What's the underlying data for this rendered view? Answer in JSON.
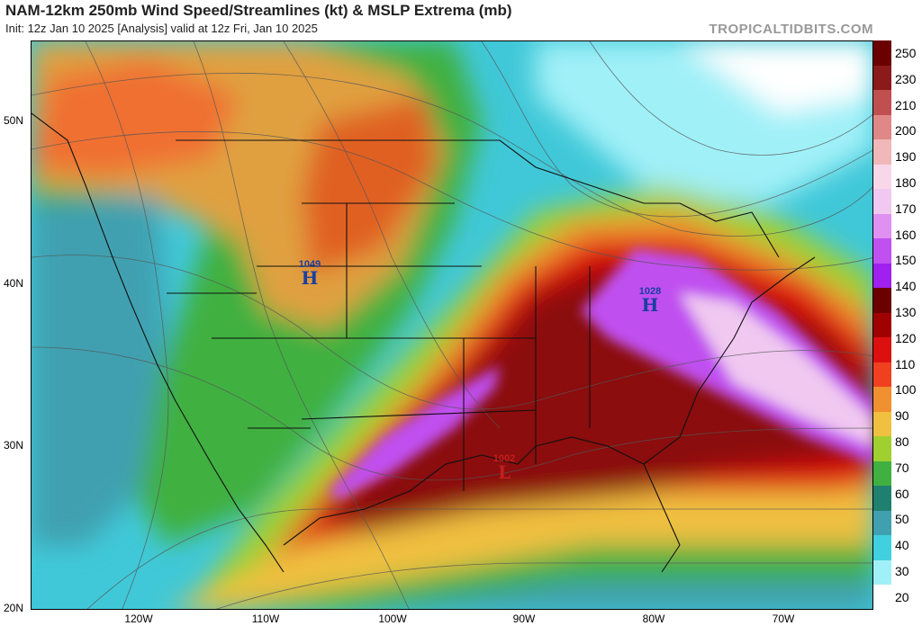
{
  "header": {
    "title": "NAM-12km 250mb Wind Speed/Streamlines (kt) & MSLP Extrema (mb)",
    "subtitle": "Init: 12z Jan 10 2025   [Analysis]   valid at 12z Fri, Jan 10 2025",
    "brand": "TROPICALTIDBITS.COM"
  },
  "axes": {
    "lat_labels": [
      "50N",
      "40N",
      "30N",
      "20N"
    ],
    "lon_labels": [
      "120W",
      "110W",
      "100W",
      "90W",
      "80W",
      "70W"
    ]
  },
  "colorbar": {
    "labels": [
      "250",
      "230",
      "210",
      "200",
      "190",
      "180",
      "170",
      "160",
      "150",
      "140",
      "130",
      "120",
      "110",
      "100",
      "90",
      "80",
      "70",
      "60",
      "50",
      "40",
      "30",
      "20"
    ],
    "colors": [
      "#6b0000",
      "#8b1a1a",
      "#c05050",
      "#e08888",
      "#f0b8b8",
      "#f8d8e8",
      "#f0c8f0",
      "#e090f0",
      "#c050f0",
      "#a020f0",
      "#6a0000",
      "#a00000",
      "#dd1010",
      "#f04020",
      "#f09030",
      "#f0c040",
      "#a0d030",
      "#40b040",
      "#208070",
      "#40a0b0",
      "#40d0e0",
      "#a0f0f8",
      "#ffffff"
    ]
  },
  "pressure_centers": [
    {
      "type": "H",
      "value": "1049",
      "color": "#1a3fa0"
    },
    {
      "type": "H",
      "value": "1028",
      "color": "#1a3fa0"
    },
    {
      "type": "L",
      "value": "1002",
      "color": "#c02020"
    }
  ]
}
